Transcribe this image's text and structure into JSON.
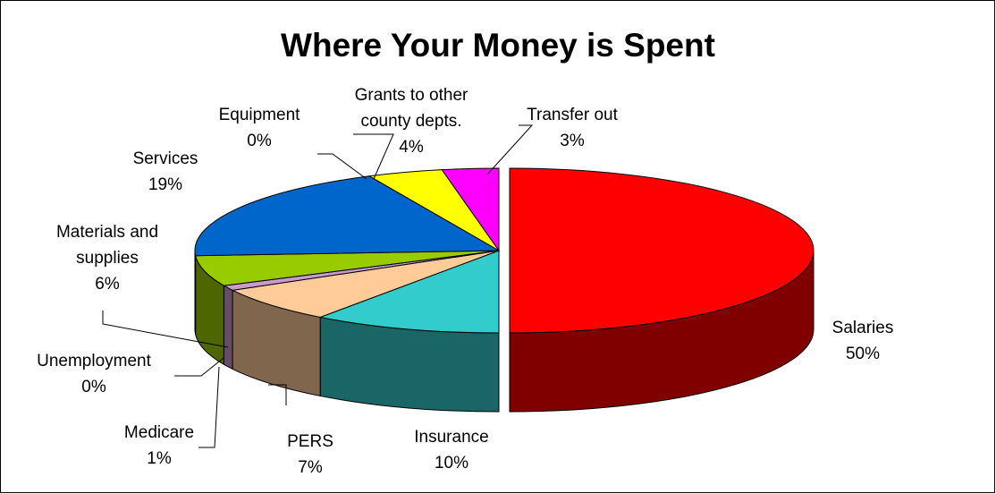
{
  "chart_data": {
    "type": "pie",
    "title": "Where Your Money is Spent",
    "categories": [
      "Salaries",
      "Insurance",
      "PERS",
      "Medicare",
      "Unemployment",
      "Materials and supplies",
      "Services",
      "Equipment",
      "Grants to other county depts.",
      "Transfer out"
    ],
    "values": [
      50,
      10,
      7,
      1,
      0,
      6,
      19,
      0,
      4,
      3
    ],
    "value_labels": [
      "50%",
      "10%",
      "7%",
      "1%",
      "0%",
      "6%",
      "19%",
      "0%",
      "4%",
      "3%"
    ],
    "colors": [
      "#ff0000",
      "#33cccc",
      "#ffcc99",
      "#cc99cc",
      "#996633",
      "#99cc00",
      "#0066cc",
      "#000080",
      "#ffff00",
      "#ff00ff"
    ]
  }
}
